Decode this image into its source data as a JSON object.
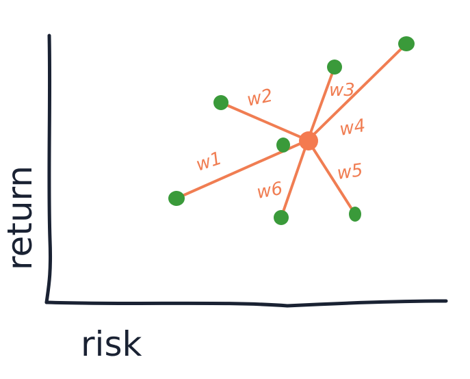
{
  "axes": {
    "x_label": "risk",
    "y_label": "return"
  },
  "colors": {
    "axis": "#1a2233",
    "edge": "#f07d52",
    "asset": "#3a9a3a",
    "center": "#f47a50"
  },
  "weights": [
    {
      "id": "w1",
      "label": "w1"
    },
    {
      "id": "w2",
      "label": "w2"
    },
    {
      "id": "w3",
      "label": "w3"
    },
    {
      "id": "w4",
      "label": "w4"
    },
    {
      "id": "w5",
      "label": "w5"
    },
    {
      "id": "w6",
      "label": "w6"
    }
  ]
}
